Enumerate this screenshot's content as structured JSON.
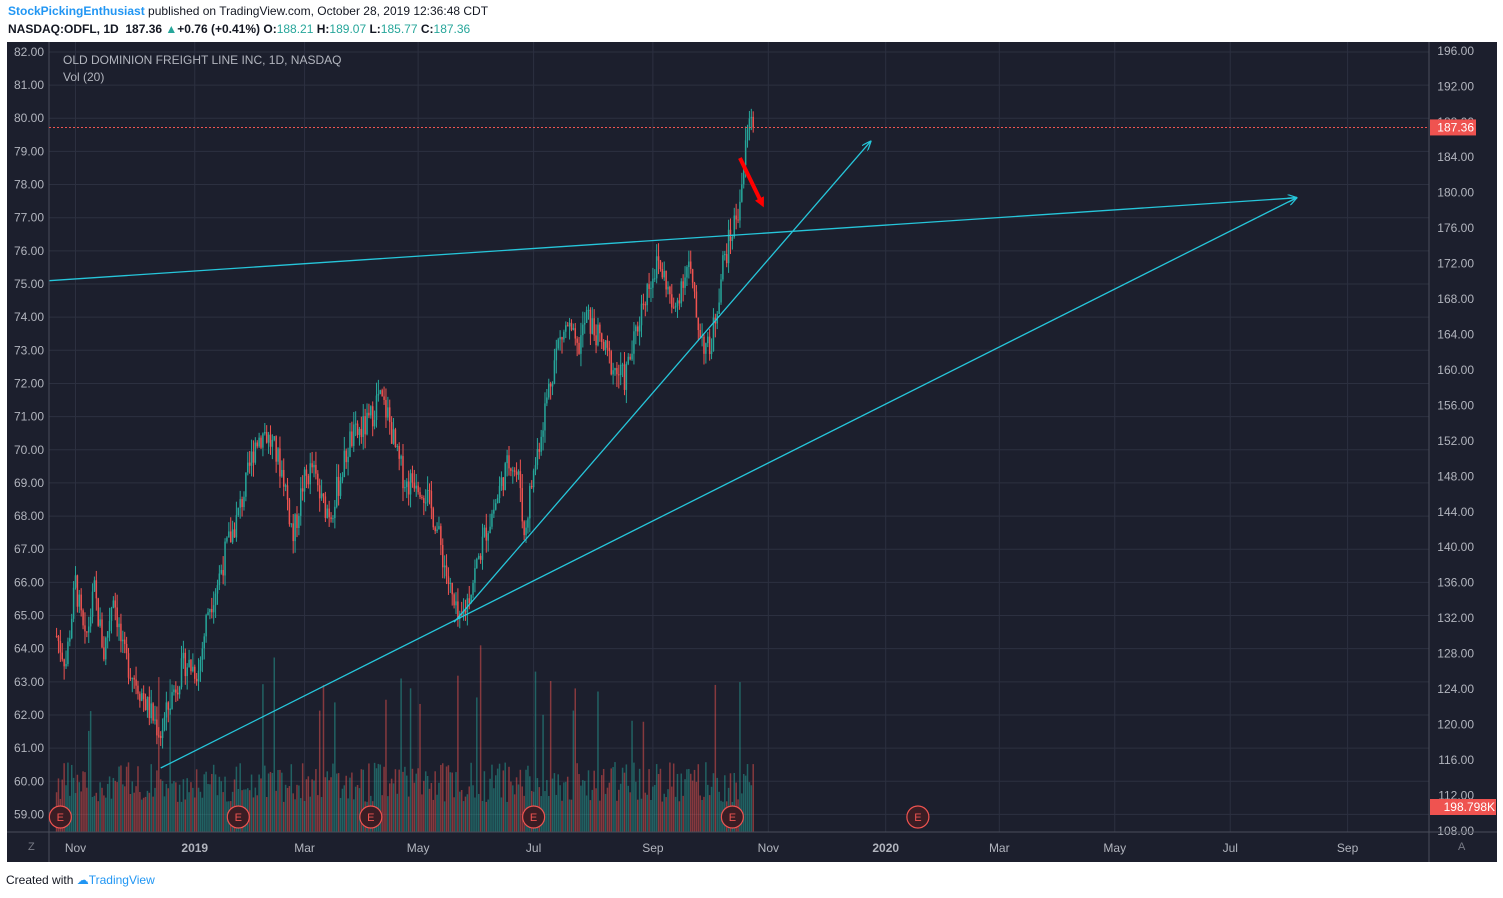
{
  "header": {
    "author": "StockPickingEnthusiast",
    "published": "published on TradingView.com, October 28, 2019 12:36:48 CDT",
    "symbol": "NASDAQ:ODFL, 1D",
    "last": "187.36",
    "change": "+0.76 (+0.41%)",
    "o_label": "O:",
    "o": "188.21",
    "h_label": "H:",
    "h": "189.07",
    "l_label": "L:",
    "l": "185.77",
    "c_label": "C:",
    "c": "187.36"
  },
  "legend": {
    "title": "OLD DOMINION FREIGHT LINE INC, 1D, NASDAQ",
    "volume": "Vol (20)"
  },
  "badges": {
    "price": "187.36",
    "volume": "198.798K",
    "zoom": "Z",
    "auto": "A",
    "earnings": "E"
  },
  "footer": {
    "created": "Created with",
    "brand": "TradingView"
  },
  "colors": {
    "background": "#1c1f2d",
    "grid": "#2c3040",
    "up": "#26a69a",
    "down": "#ef5350",
    "trendline": "#26c6da",
    "arrow": "#ff0000"
  },
  "chart_data": {
    "type": "candlestick",
    "title": "OLD DOMINION FREIGHT LINE INC, 1D, NASDAQ",
    "x_labels": [
      "Nov",
      "2019",
      "Mar",
      "May",
      "Jul",
      "Sep",
      "Nov",
      "2020",
      "Mar",
      "May",
      "Jul",
      "Sep"
    ],
    "x_label_days": [
      10,
      73,
      131,
      191,
      252,
      315,
      376,
      438,
      498,
      559,
      620,
      682
    ],
    "x_range_days": [
      -4,
      725
    ],
    "left_axis_ticks": [
      "82.00",
      "81.00",
      "80.00",
      "79.00",
      "78.00",
      "77.00",
      "76.00",
      "75.00",
      "74.00",
      "73.00",
      "72.00",
      "71.00",
      "70.00",
      "69.00",
      "68.00",
      "67.00",
      "66.00",
      "65.00",
      "64.00",
      "63.00",
      "62.00",
      "61.00",
      "60.00",
      "59.00"
    ],
    "left_range": [
      58.47,
      82.3
    ],
    "right_axis_ticks": [
      "196.00",
      "192.00",
      "188.00",
      "184.00",
      "180.00",
      "176.00",
      "172.00",
      "168.00",
      "164.00",
      "160.00",
      "156.00",
      "152.00",
      "148.00",
      "144.00",
      "140.00",
      "136.00",
      "132.00",
      "128.00",
      "124.00",
      "120.00",
      "116.00",
      "112.00",
      "108.00"
    ],
    "right_range": [
      107.87,
      197.0
    ],
    "last_price": 187.36,
    "price_path": [
      [
        0,
        130
      ],
      [
        5,
        127
      ],
      [
        10,
        136
      ],
      [
        15,
        129
      ],
      [
        20,
        135
      ],
      [
        25,
        128
      ],
      [
        30,
        135
      ],
      [
        35,
        128
      ],
      [
        42,
        125
      ],
      [
        48,
        122
      ],
      [
        55,
        119
      ],
      [
        62,
        124
      ],
      [
        68,
        127
      ],
      [
        75,
        126
      ],
      [
        80,
        133
      ],
      [
        85,
        136
      ],
      [
        90,
        140
      ],
      [
        95,
        143
      ],
      [
        100,
        147
      ],
      [
        105,
        152
      ],
      [
        110,
        153
      ],
      [
        115,
        151
      ],
      [
        120,
        148
      ],
      [
        125,
        141
      ],
      [
        130,
        147
      ],
      [
        135,
        149
      ],
      [
        140,
        145
      ],
      [
        145,
        144
      ],
      [
        150,
        148
      ],
      [
        155,
        152
      ],
      [
        160,
        153
      ],
      [
        165,
        154
      ],
      [
        170,
        157
      ],
      [
        175,
        155
      ],
      [
        180,
        150
      ],
      [
        185,
        147
      ],
      [
        190,
        148
      ],
      [
        195,
        146
      ],
      [
        200,
        143
      ],
      [
        205,
        138
      ],
      [
        210,
        133
      ],
      [
        213,
        131
      ],
      [
        217,
        134
      ],
      [
        222,
        138
      ],
      [
        227,
        142
      ],
      [
        232,
        145
      ],
      [
        236,
        148
      ],
      [
        240,
        150
      ],
      [
        245,
        147
      ],
      [
        247,
        141
      ],
      [
        250,
        146
      ],
      [
        255,
        152
      ],
      [
        260,
        158
      ],
      [
        265,
        163
      ],
      [
        270,
        165
      ],
      [
        275,
        162
      ],
      [
        280,
        166
      ],
      [
        285,
        164
      ],
      [
        290,
        162
      ],
      [
        295,
        160
      ],
      [
        300,
        159
      ],
      [
        305,
        163
      ],
      [
        310,
        168
      ],
      [
        315,
        171
      ],
      [
        318,
        172
      ],
      [
        322,
        170
      ],
      [
        326,
        166
      ],
      [
        330,
        170
      ],
      [
        334,
        172
      ],
      [
        338,
        166
      ],
      [
        342,
        163
      ],
      [
        345,
        162
      ],
      [
        348,
        166
      ],
      [
        352,
        172
      ],
      [
        356,
        175
      ],
      [
        360,
        178
      ],
      [
        363,
        183
      ],
      [
        365,
        187
      ],
      [
        367,
        189
      ],
      [
        368,
        187.36
      ]
    ],
    "price_range_bounds": [
      58.47,
      82.3
    ],
    "volume_range": [
      0,
      380
    ],
    "earnings_days": [
      2,
      96,
      166,
      252,
      357,
      455
    ],
    "trendlines": [
      {
        "from": [
          -4,
          75.1
        ],
        "to": [
          655,
          77.6
        ],
        "arrow": true
      },
      {
        "from": [
          55,
          60.4
        ],
        "to": [
          655,
          77.6
        ],
        "arrow": true
      },
      {
        "from": [
          210,
          64.8
        ],
        "to": [
          430,
          79.3
        ],
        "arrow": true
      }
    ],
    "annotation_arrow": {
      "from": [
        361,
        78.8
      ],
      "to": [
        372,
        77.5
      ]
    }
  }
}
